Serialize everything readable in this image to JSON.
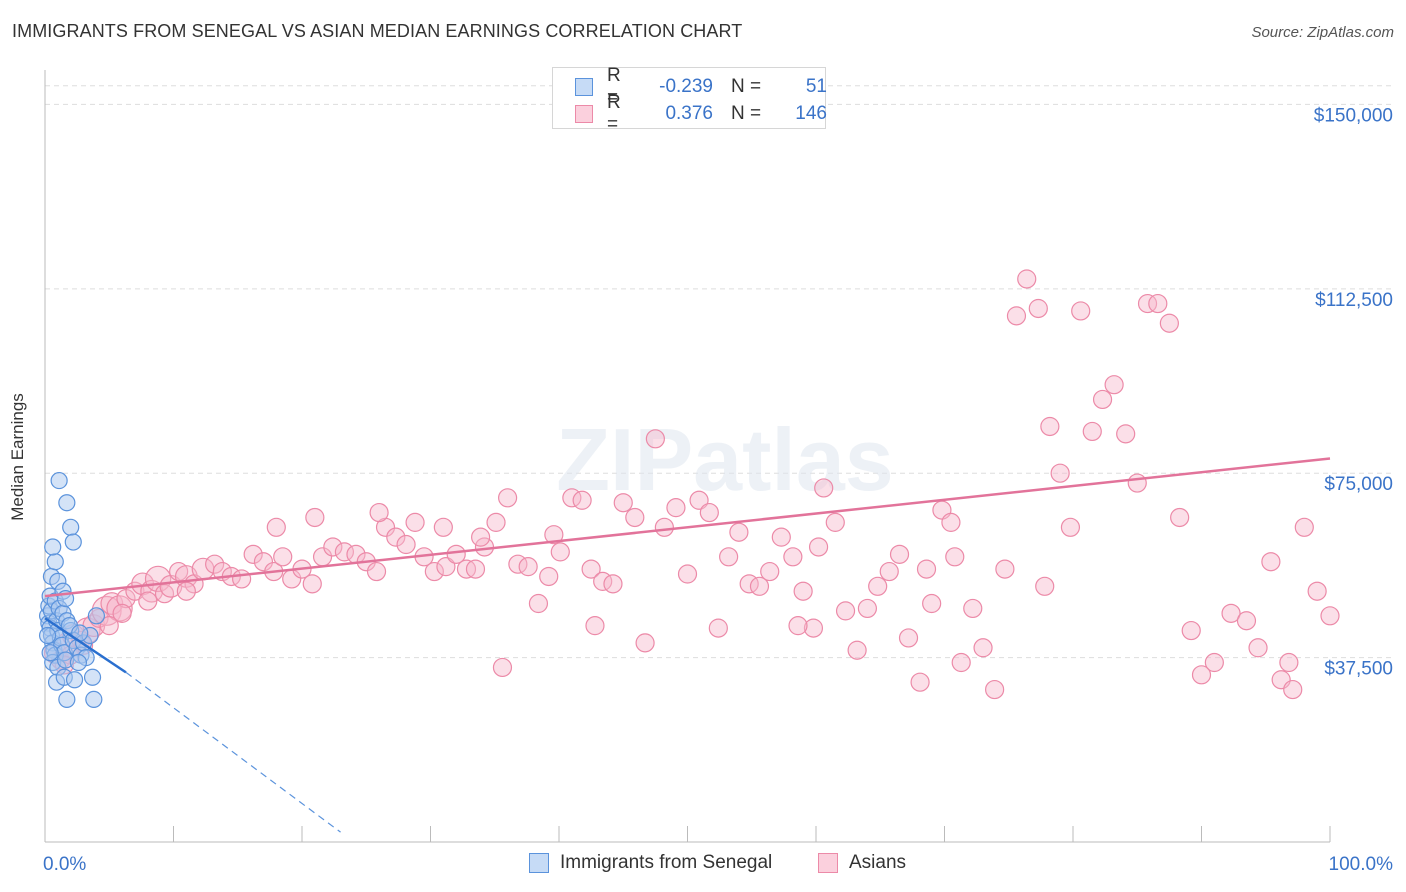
{
  "header": {
    "title": "IMMIGRANTS FROM SENEGAL VS ASIAN MEDIAN EARNINGS CORRELATION CHART",
    "source": "Source: ZipAtlas.com"
  },
  "watermark": "ZIPatlas",
  "legend": {
    "rows": [
      {
        "r_label": "R =",
        "r_value": "-0.239",
        "n_label": "N =",
        "n_value": "51"
      },
      {
        "r_label": "R =",
        "r_value": "0.376",
        "n_label": "N =",
        "n_value": "146"
      }
    ]
  },
  "colors": {
    "senegal_fill": "#a9c8f0",
    "senegal_stroke": "#5b93dc",
    "senegal_line": "#2a6fcf",
    "asians_fill": "#f7b8cb",
    "asians_stroke": "#ec8aa8",
    "asians_line": "#e2739a",
    "axis_label": "#3a73c8",
    "grid": "#dddddd"
  },
  "chart_data": {
    "type": "scatter",
    "title": "IMMIGRANTS FROM SENEGAL VS ASIAN MEDIAN EARNINGS CORRELATION CHART",
    "xlabel": "",
    "ylabel": "Median Earnings",
    "xlim": [
      0,
      100
    ],
    "ylim": [
      0,
      157000
    ],
    "x_tick_labels": [
      "0.0%",
      "100.0%"
    ],
    "y_ticks": [
      37500,
      75000,
      112500,
      150000
    ],
    "y_tick_labels": [
      "$37,500",
      "$75,000",
      "$112,500",
      "$150,000"
    ],
    "legend_position": "bottom-center",
    "series": [
      {
        "name": "Immigrants from Senegal",
        "r": -0.239,
        "n": 51,
        "trend": {
          "x0": 0,
          "y0": 45500,
          "x1": 6.3,
          "y1": 34500,
          "dash_to_x": 23,
          "dash_to_y": 2000
        },
        "points": [
          [
            0.2,
            46000,
            1
          ],
          [
            0.3,
            44500,
            1
          ],
          [
            0.4,
            43500,
            1
          ],
          [
            0.5,
            42000,
            1
          ],
          [
            0.6,
            40500,
            1
          ],
          [
            0.7,
            39000,
            1
          ],
          [
            0.8,
            38000,
            1
          ],
          [
            0.3,
            48000,
            1
          ],
          [
            0.5,
            47000,
            1
          ],
          [
            0.9,
            45000,
            1
          ],
          [
            1.0,
            43000,
            1
          ],
          [
            1.2,
            41500,
            1
          ],
          [
            1.3,
            40000,
            1
          ],
          [
            1.5,
            38500,
            1
          ],
          [
            0.4,
            50000,
            1
          ],
          [
            0.8,
            49000,
            1
          ],
          [
            1.1,
            47500,
            1
          ],
          [
            1.4,
            46500,
            1
          ],
          [
            1.7,
            45000,
            1
          ],
          [
            2.0,
            43000,
            1
          ],
          [
            2.2,
            41000,
            1
          ],
          [
            0.6,
            36500,
            1
          ],
          [
            1.0,
            35500,
            1
          ],
          [
            1.6,
            37000,
            1
          ],
          [
            2.5,
            39500,
            1
          ],
          [
            2.8,
            38000,
            1
          ],
          [
            3.0,
            40500,
            1
          ],
          [
            3.5,
            42000,
            1
          ],
          [
            0.5,
            54000,
            1
          ],
          [
            0.8,
            57000,
            1
          ],
          [
            0.6,
            60000,
            1
          ],
          [
            1.0,
            53000,
            1
          ],
          [
            1.4,
            51000,
            1
          ],
          [
            1.6,
            49500,
            1
          ],
          [
            1.1,
            73500,
            1
          ],
          [
            1.7,
            69000,
            1
          ],
          [
            2.0,
            64000,
            1
          ],
          [
            2.2,
            61000,
            1
          ],
          [
            0.9,
            32500,
            1
          ],
          [
            1.5,
            33500,
            1
          ],
          [
            2.3,
            33000,
            1
          ],
          [
            3.7,
            33500,
            1
          ],
          [
            1.7,
            29000,
            1
          ],
          [
            3.8,
            29000,
            1
          ],
          [
            4.0,
            46000,
            1
          ],
          [
            3.2,
            37500,
            1
          ],
          [
            2.6,
            36500,
            1
          ],
          [
            0.2,
            42000,
            1
          ],
          [
            0.4,
            38500,
            1
          ],
          [
            1.9,
            44000,
            1
          ],
          [
            2.7,
            42500,
            1
          ]
        ]
      },
      {
        "name": "Asians",
        "r": 0.376,
        "n": 146,
        "trend": {
          "x0": 0,
          "y0": 50000,
          "x1": 100,
          "y1": 78000
        },
        "points": [
          [
            0.8,
            38500,
            1.2
          ],
          [
            1.2,
            37000,
            1
          ],
          [
            1.8,
            40000,
            1.4
          ],
          [
            2.2,
            42000,
            1.2
          ],
          [
            2.8,
            41000,
            1
          ],
          [
            3.3,
            43000,
            1.4
          ],
          [
            3.8,
            44000,
            1.2
          ],
          [
            4.2,
            45500,
            1
          ],
          [
            4.8,
            47000,
            1.6
          ],
          [
            5.2,
            48500,
            1.2
          ],
          [
            5.8,
            47500,
            1.4
          ],
          [
            6.3,
            49500,
            1
          ],
          [
            7.0,
            51000,
            1
          ],
          [
            7.6,
            52500,
            1.2
          ],
          [
            8.3,
            51000,
            1.2
          ],
          [
            8.8,
            53500,
            1.4
          ],
          [
            9.3,
            50500,
            1
          ],
          [
            9.8,
            52000,
            1.2
          ],
          [
            10.4,
            55000,
            1
          ],
          [
            11.0,
            54000,
            1.2
          ],
          [
            11.6,
            52500,
            1
          ],
          [
            12.3,
            55500,
            1.2
          ],
          [
            13.2,
            56500,
            1
          ],
          [
            13.8,
            55000,
            1
          ],
          [
            14.5,
            54000,
            1
          ],
          [
            15.3,
            53500,
            1
          ],
          [
            16.2,
            58500,
            1
          ],
          [
            17.0,
            57000,
            1
          ],
          [
            17.8,
            55000,
            1
          ],
          [
            18.5,
            58000,
            1
          ],
          [
            19.2,
            53500,
            1
          ],
          [
            20.0,
            55500,
            1
          ],
          [
            20.8,
            52500,
            1
          ],
          [
            21.6,
            58000,
            1
          ],
          [
            22.4,
            60000,
            1
          ],
          [
            23.3,
            59000,
            1
          ],
          [
            24.2,
            58500,
            1
          ],
          [
            25.0,
            57000,
            1
          ],
          [
            25.8,
            55000,
            1
          ],
          [
            26.5,
            64000,
            1
          ],
          [
            27.3,
            62000,
            1
          ],
          [
            28.1,
            60500,
            1
          ],
          [
            28.8,
            65000,
            1
          ],
          [
            29.5,
            58000,
            1
          ],
          [
            30.3,
            55000,
            1
          ],
          [
            31.2,
            56000,
            1
          ],
          [
            32.0,
            58500,
            1
          ],
          [
            32.8,
            55500,
            1
          ],
          [
            33.5,
            55500,
            1
          ],
          [
            34.2,
            60000,
            1
          ],
          [
            35.1,
            65000,
            1
          ],
          [
            36.0,
            70000,
            1
          ],
          [
            36.8,
            56500,
            1
          ],
          [
            37.6,
            56000,
            1
          ],
          [
            38.4,
            48500,
            1
          ],
          [
            39.2,
            54000,
            1
          ],
          [
            40.1,
            59000,
            1
          ],
          [
            41.0,
            70000,
            1
          ],
          [
            41.8,
            69500,
            1
          ],
          [
            42.5,
            55500,
            1
          ],
          [
            43.4,
            53000,
            1
          ],
          [
            44.2,
            52500,
            1
          ],
          [
            45.0,
            69000,
            1
          ],
          [
            45.9,
            66000,
            1
          ],
          [
            46.7,
            40500,
            1
          ],
          [
            47.5,
            82000,
            1
          ],
          [
            48.2,
            64000,
            1
          ],
          [
            49.1,
            68000,
            1
          ],
          [
            50.0,
            54500,
            1
          ],
          [
            50.9,
            69500,
            1
          ],
          [
            51.7,
            67000,
            1
          ],
          [
            52.4,
            43500,
            1
          ],
          [
            53.2,
            58000,
            1
          ],
          [
            54.0,
            63000,
            1
          ],
          [
            54.8,
            52500,
            1
          ],
          [
            55.6,
            52000,
            1
          ],
          [
            56.4,
            55000,
            1
          ],
          [
            57.3,
            62000,
            1
          ],
          [
            58.2,
            58000,
            1
          ],
          [
            59.0,
            51000,
            1
          ],
          [
            59.8,
            43500,
            1
          ],
          [
            60.6,
            72000,
            1
          ],
          [
            61.5,
            65000,
            1
          ],
          [
            62.3,
            47000,
            1
          ],
          [
            63.2,
            39000,
            1
          ],
          [
            64.0,
            47500,
            1
          ],
          [
            64.8,
            52000,
            1
          ],
          [
            65.7,
            55000,
            1
          ],
          [
            66.5,
            58500,
            1
          ],
          [
            67.2,
            41500,
            1
          ],
          [
            68.1,
            32500,
            1
          ],
          [
            69.0,
            48500,
            1
          ],
          [
            69.8,
            67500,
            1
          ],
          [
            70.5,
            65000,
            1
          ],
          [
            71.3,
            36500,
            1
          ],
          [
            72.2,
            47500,
            1
          ],
          [
            73.0,
            39500,
            1
          ],
          [
            73.9,
            31000,
            1
          ],
          [
            74.7,
            55500,
            1
          ],
          [
            75.6,
            107000,
            1
          ],
          [
            76.4,
            114500,
            1
          ],
          [
            77.3,
            108500,
            1
          ],
          [
            78.2,
            84500,
            1
          ],
          [
            79.0,
            75000,
            1
          ],
          [
            79.8,
            64000,
            1
          ],
          [
            80.6,
            108000,
            1
          ],
          [
            81.5,
            83500,
            1
          ],
          [
            82.3,
            90000,
            1
          ],
          [
            83.2,
            93000,
            1
          ],
          [
            84.1,
            83000,
            1
          ],
          [
            85.0,
            73000,
            1
          ],
          [
            85.8,
            109500,
            1
          ],
          [
            86.6,
            109500,
            1
          ],
          [
            87.5,
            105500,
            1
          ],
          [
            88.3,
            66000,
            1
          ],
          [
            89.2,
            43000,
            1
          ],
          [
            90.0,
            34000,
            1
          ],
          [
            91.0,
            36500,
            1
          ],
          [
            92.3,
            46500,
            1
          ],
          [
            93.5,
            45000,
            1
          ],
          [
            94.4,
            39500,
            1
          ],
          [
            95.4,
            57000,
            1
          ],
          [
            96.2,
            33000,
            1
          ],
          [
            97.1,
            31000,
            1
          ],
          [
            98.0,
            64000,
            1
          ],
          [
            99.0,
            51000,
            1
          ],
          [
            100.0,
            46000,
            1
          ],
          [
            35.6,
            35500,
            1
          ],
          [
            42.8,
            44000,
            1
          ],
          [
            58.6,
            44000,
            1
          ],
          [
            68.6,
            55500,
            1
          ],
          [
            70.8,
            58000,
            1
          ],
          [
            77.8,
            52000,
            1
          ],
          [
            39.6,
            62500,
            1
          ],
          [
            33.9,
            62000,
            1
          ],
          [
            31.0,
            64000,
            1
          ],
          [
            60.2,
            60000,
            1
          ],
          [
            26.0,
            67000,
            1
          ],
          [
            21.0,
            66000,
            1
          ],
          [
            18.0,
            64000,
            1
          ],
          [
            11.0,
            51000,
            1
          ],
          [
            8.0,
            49000,
            1
          ],
          [
            6.0,
            46500,
            1
          ],
          [
            5.0,
            44000,
            1
          ],
          [
            3.0,
            40000,
            1
          ],
          [
            2.0,
            38000,
            1
          ],
          [
            1.5,
            36000,
            1
          ],
          [
            96.8,
            36500,
            1
          ]
        ]
      }
    ]
  },
  "bottom_legend": {
    "items": [
      {
        "label": "Immigrants from Senegal"
      },
      {
        "label": "Asians"
      }
    ]
  }
}
